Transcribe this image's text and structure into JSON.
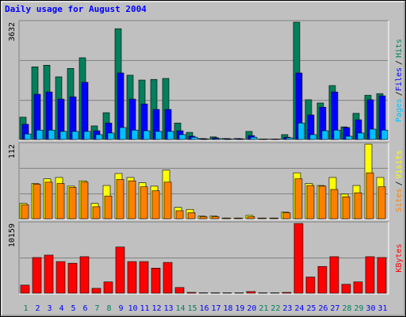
{
  "title": "Daily usage for August 2004",
  "legend_separator": "/",
  "chart_data": [
    {
      "type": "bar",
      "ylim": [
        0,
        3632
      ],
      "yticks": [
        3632
      ],
      "series": [
        {
          "name": "Hits",
          "color": "#00805c",
          "values": [
            690,
            2250,
            2300,
            1940,
            2200,
            2530,
            420,
            830,
            3430,
            1990,
            1840,
            1860,
            1890,
            510,
            220,
            30,
            80,
            30,
            30,
            250,
            10,
            10,
            150,
            3632,
            1230,
            1130,
            1670,
            390,
            810,
            1370,
            1420
          ]
        },
        {
          "name": "Files",
          "color": "#0000ff",
          "values": [
            470,
            1400,
            1470,
            1250,
            1320,
            1770,
            270,
            510,
            2060,
            1250,
            1100,
            930,
            930,
            270,
            100,
            25,
            50,
            25,
            25,
            120,
            5,
            5,
            70,
            2060,
            760,
            1000,
            1470,
            370,
            610,
            1230,
            1350
          ]
        },
        {
          "name": "Pages",
          "color": "#00c0ff",
          "values": [
            170,
            290,
            290,
            250,
            250,
            250,
            150,
            200,
            370,
            290,
            270,
            250,
            250,
            150,
            70,
            10,
            25,
            10,
            10,
            70,
            5,
            5,
            50,
            510,
            150,
            270,
            290,
            100,
            200,
            320,
            290
          ]
        }
      ]
    },
    {
      "type": "bar",
      "ylim": [
        0,
        112
      ],
      "yticks": [
        112
      ],
      "series": [
        {
          "name": "Visits",
          "color": "#ffff00",
          "values": [
            23,
            53,
            60,
            62,
            49,
            57,
            23,
            50,
            68,
            62,
            54,
            49,
            73,
            17,
            14,
            4,
            4,
            1,
            1,
            5,
            1,
            1,
            10,
            69,
            53,
            50,
            62,
            37,
            50,
            112,
            62
          ]
        },
        {
          "name": "Sites",
          "color": "#ff8000",
          "values": [
            21,
            52,
            55,
            53,
            47,
            55,
            18,
            34,
            59,
            57,
            48,
            42,
            55,
            12,
            9,
            3,
            3,
            1,
            1,
            3,
            1,
            1,
            9,
            60,
            50,
            49,
            44,
            33,
            39,
            69,
            48
          ]
        }
      ]
    },
    {
      "type": "bar",
      "ylim": [
        0,
        10159
      ],
      "yticks": [
        10159
      ],
      "categories": [
        "1",
        "2",
        "3",
        "4",
        "5",
        "6",
        "7",
        "8",
        "9",
        "10",
        "11",
        "12",
        "13",
        "14",
        "15",
        "16",
        "17",
        "18",
        "19",
        "20",
        "21",
        "22",
        "23",
        "24",
        "25",
        "26",
        "27",
        "28",
        "29",
        "30",
        "31"
      ],
      "category_colors": [
        "#00805c",
        "#0000ff",
        "#0000ff",
        "#0000ff",
        "#0000ff",
        "#0000ff",
        "#00805c",
        "#00805c",
        "#0000ff",
        "#0000ff",
        "#0000ff",
        "#0000ff",
        "#0000ff",
        "#00805c",
        "#00805c",
        "#0000ff",
        "#0000ff",
        "#0000ff",
        "#0000ff",
        "#0000ff",
        "#00805c",
        "#00805c",
        "#0000ff",
        "#0000ff",
        "#0000ff",
        "#0000ff",
        "#0000ff",
        "#00805c",
        "#00805c",
        "#0000ff",
        "#0000ff"
      ],
      "series": [
        {
          "name": "KBytes",
          "color": "#ff0000",
          "values": [
            1180,
            5200,
            5550,
            4610,
            4370,
            5320,
            710,
            1650,
            6730,
            4610,
            4610,
            3660,
            4490,
            830,
            120,
            60,
            60,
            30,
            30,
            240,
            10,
            10,
            120,
            10159,
            2360,
            3900,
            5320,
            1300,
            1650,
            5320,
            5200
          ]
        }
      ]
    }
  ]
}
